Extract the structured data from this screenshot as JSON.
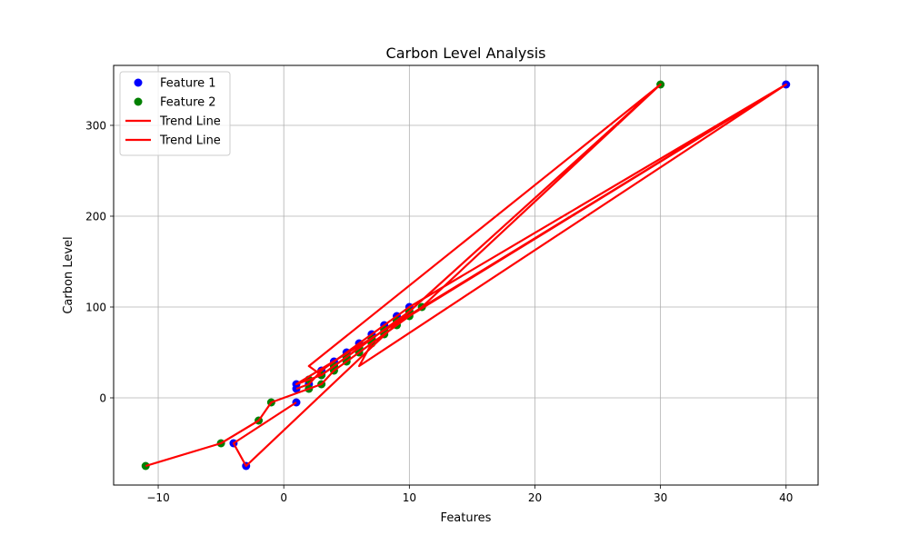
{
  "chart_data": {
    "type": "scatter",
    "title": "Carbon Level Analysis",
    "xlabel": "Features",
    "ylabel": "Carbon Level",
    "xlim": [
      -13.55,
      42.55
    ],
    "ylim": [
      -96,
      366
    ],
    "x_ticks": [
      -10,
      0,
      10,
      20,
      30,
      40
    ],
    "y_ticks": [
      0,
      100,
      200,
      300
    ],
    "grid": true,
    "legend_position": "upper-left",
    "series": [
      {
        "name": "Feature 1",
        "kind": "scatter",
        "color": "#0000ff",
        "x": [
          1,
          2,
          3,
          4,
          5,
          6,
          7,
          8,
          9,
          10,
          1,
          2,
          3,
          4,
          5,
          6,
          7,
          8,
          9,
          10,
          40,
          -3,
          -4,
          1
        ],
        "y": [
          10,
          15,
          30,
          40,
          50,
          60,
          70,
          80,
          90,
          100,
          15,
          20,
          25,
          35,
          45,
          55,
          65,
          75,
          85,
          95,
          345,
          -75,
          -50,
          -5
        ]
      },
      {
        "name": "Feature 2",
        "kind": "scatter",
        "color": "#008000",
        "x": [
          2,
          3,
          4,
          5,
          6,
          7,
          8,
          9,
          10,
          11,
          2,
          3,
          4,
          5,
          6,
          7,
          8,
          9,
          10,
          30,
          -11,
          -5,
          -2,
          -1
        ],
        "y": [
          10,
          15,
          30,
          40,
          50,
          60,
          70,
          80,
          90,
          100,
          20,
          25,
          35,
          45,
          55,
          65,
          75,
          85,
          95,
          345,
          -75,
          -50,
          -25,
          -5
        ]
      },
      {
        "name": "Trend Line",
        "kind": "line",
        "color": "#ff0000",
        "x": [
          1,
          2,
          3,
          4,
          5,
          6,
          7,
          8,
          9,
          10,
          40,
          6,
          7,
          8,
          9,
          10,
          40,
          1,
          2,
          3,
          4,
          5,
          6,
          7,
          8,
          9,
          10,
          -3,
          -4,
          1
        ],
        "y": [
          10,
          15,
          30,
          40,
          50,
          60,
          70,
          80,
          90,
          100,
          345,
          35,
          60,
          70,
          80,
          90,
          345,
          15,
          20,
          25,
          35,
          45,
          55,
          65,
          75,
          85,
          95,
          -75,
          -50,
          -5
        ]
      },
      {
        "name": "Trend Line",
        "kind": "line",
        "color": "#ff0000",
        "x": [
          -11,
          -5,
          -2,
          -1,
          1,
          2,
          3,
          4,
          5,
          6,
          7,
          8,
          9,
          10,
          11,
          30,
          2,
          3,
          4,
          5,
          6,
          7,
          8,
          9,
          10,
          30
        ],
        "y": [
          -75,
          -50,
          -25,
          -5,
          5,
          10,
          15,
          30,
          40,
          50,
          60,
          70,
          80,
          90,
          100,
          345,
          35,
          25,
          35,
          45,
          55,
          65,
          75,
          85,
          95,
          345
        ]
      }
    ]
  }
}
